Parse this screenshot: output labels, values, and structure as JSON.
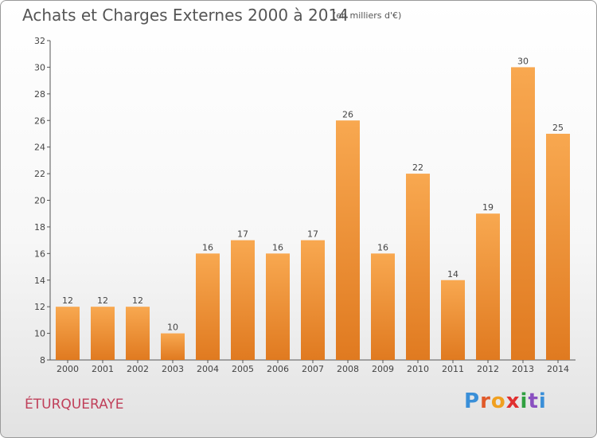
{
  "header": {
    "title": "Achats et Charges Externes 2000 à 2014",
    "unit": "(en milliers d'€)"
  },
  "footer": {
    "commune": "ÉTURQUERAYE",
    "logo_text": "Proxiti"
  },
  "colors": {
    "bar_light": "#f8a850",
    "bar_dark": "#e07a20",
    "axis": "#555555",
    "commune_text": "#c0405a",
    "logo_letters": [
      "#3a8fd8",
      "#e05a2a",
      "#f0a020",
      "#e03030",
      "#30a040",
      "#8a50c0",
      "#3a8fd8"
    ]
  },
  "chart_data": {
    "type": "bar",
    "title": "Achats et Charges Externes 2000 à 2014",
    "subtitle": "(en milliers d'€)",
    "xlabel": "",
    "ylabel": "",
    "categories": [
      "2000",
      "2001",
      "2002",
      "2003",
      "2004",
      "2005",
      "2006",
      "2007",
      "2008",
      "2009",
      "2010",
      "2011",
      "2012",
      "2013",
      "2014"
    ],
    "values": [
      12,
      12,
      12,
      10,
      16,
      17,
      16,
      17,
      26,
      16,
      22,
      14,
      19,
      30,
      25
    ],
    "ylim": [
      8,
      32
    ],
    "yticks": [
      8,
      10,
      12,
      14,
      16,
      18,
      20,
      22,
      24,
      26,
      28,
      30,
      32
    ],
    "grid": false,
    "data_labels": true
  }
}
